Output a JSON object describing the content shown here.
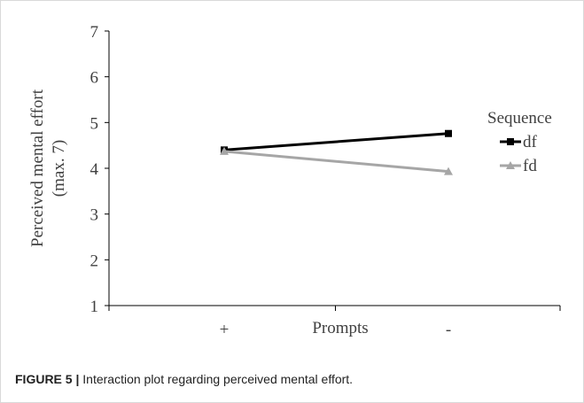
{
  "chart_data": {
    "type": "line",
    "title": "",
    "xlabel": "Prompts",
    "ylabel_lines": [
      "Perceived mental effort",
      "(max. 7)"
    ],
    "categories": [
      "+",
      "-"
    ],
    "ylim": [
      1,
      7
    ],
    "yticks": [
      "1",
      "2",
      "3",
      "4",
      "5",
      "6",
      "7"
    ],
    "grid": false,
    "legend_title": "Sequence",
    "legend_position": "right",
    "series": [
      {
        "name": "df",
        "values": [
          4.4,
          4.76
        ],
        "color": "#000000",
        "marker": "square"
      },
      {
        "name": "fd",
        "values": [
          4.37,
          3.93
        ],
        "color": "#a6a6a6",
        "marker": "triangle"
      }
    ]
  },
  "caption": {
    "figure_label": "FIGURE 5 |",
    "text": " Interaction plot regarding perceived mental effort."
  }
}
